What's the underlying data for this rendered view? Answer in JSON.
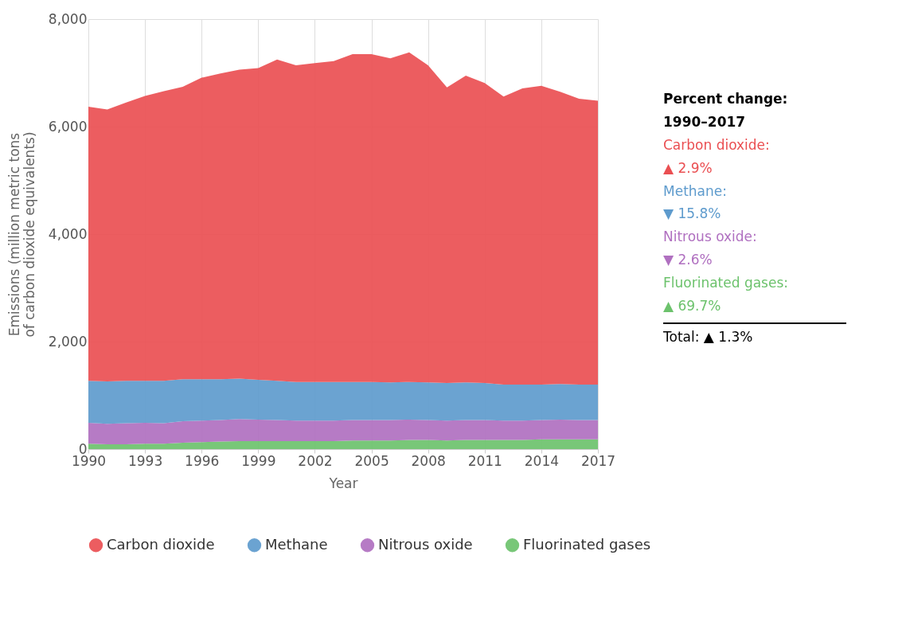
{
  "chart_data": {
    "type": "area",
    "stacked": true,
    "xlabel": "Year",
    "ylabel": "Emissions (million metric tons of carbon dioxide equivalents)",
    "x": [
      1990,
      1991,
      1992,
      1993,
      1994,
      1995,
      1996,
      1997,
      1998,
      1999,
      2000,
      2001,
      2002,
      2003,
      2004,
      2005,
      2006,
      2007,
      2008,
      2009,
      2010,
      2011,
      2012,
      2013,
      2014,
      2015,
      2016,
      2017
    ],
    "series": [
      {
        "name": "Fluorinated gases",
        "color": "#6cc26c",
        "values": [
          100,
          90,
          90,
          100,
          100,
          120,
          130,
          140,
          150,
          150,
          150,
          150,
          150,
          150,
          160,
          160,
          160,
          170,
          170,
          160,
          170,
          170,
          170,
          170,
          180,
          180,
          180,
          180
        ]
      },
      {
        "name": "Nitrous oxide",
        "color": "#b070c0",
        "values": [
          390,
          380,
          390,
          390,
          380,
          400,
          400,
          400,
          410,
          400,
          390,
          380,
          380,
          380,
          380,
          380,
          380,
          380,
          370,
          370,
          370,
          370,
          360,
          360,
          360,
          370,
          360,
          360
        ]
      },
      {
        "name": "Methane",
        "color": "#5e9bcd",
        "values": [
          780,
          790,
          790,
          780,
          790,
          780,
          770,
          760,
          750,
          740,
          730,
          720,
          720,
          720,
          710,
          710,
          700,
          700,
          700,
          700,
          700,
          690,
          670,
          670,
          660,
          660,
          660,
          660
        ]
      },
      {
        "name": "Carbon dioxide",
        "color": "#ea4f52",
        "values": [
          5100,
          5060,
          5180,
          5300,
          5390,
          5440,
          5610,
          5690,
          5750,
          5800,
          5980,
          5890,
          5930,
          5970,
          6100,
          6100,
          6030,
          6130,
          5900,
          5500,
          5710,
          5580,
          5360,
          5510,
          5560,
          5440,
          5320,
          5280
        ]
      }
    ],
    "xlim": [
      1990,
      2017
    ],
    "xticks": [
      1990,
      1993,
      1996,
      1999,
      2002,
      2005,
      2008,
      2011,
      2014,
      2017
    ],
    "ylim": [
      0,
      8000
    ],
    "yticks": [
      0,
      {
        "value": 2000,
        "label": "2,000"
      },
      {
        "value": 4000,
        "label": "4,000"
      },
      {
        "value": 6000,
        "label": "6,000"
      },
      {
        "value": 8000,
        "label": "8,000"
      }
    ],
    "grid": true,
    "legend": "bottom",
    "annotations": [
      "Percent change:",
      "1990–2017",
      "Carbon dioxide:",
      "▲ 2.9%",
      "Methane:",
      "▼ 15.8%",
      "Nitrous oxide:",
      "▼ 2.6%",
      "Fluorinated gases:",
      "▲ 69.7%",
      "Total: ▲ 1.3%"
    ]
  }
}
